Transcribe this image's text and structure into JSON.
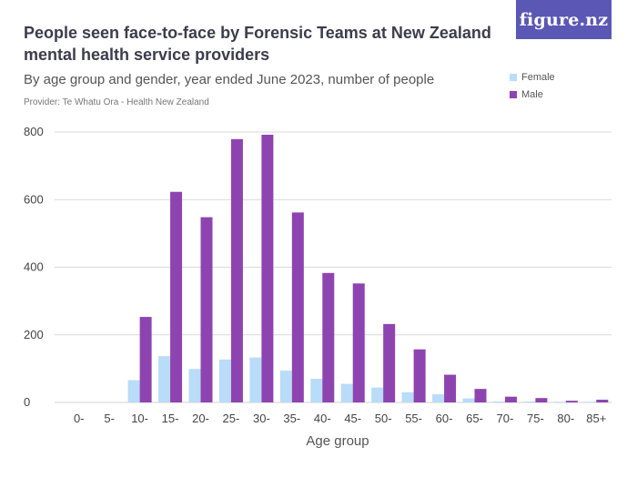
{
  "header": {
    "title": "People seen face-to-face by Forensic Teams at New Zealand mental health service providers",
    "subtitle": "By age group and gender, year ended June 2023, number of people",
    "provider": "Provider: Te Whatu Ora - Health New Zealand",
    "brand": "figure.nz"
  },
  "colors": {
    "female": "#b9dcf8",
    "male": "#8e44b0",
    "grid": "#d9d9d9",
    "brand_bg": "#5b57b5"
  },
  "chart_data": {
    "type": "bar",
    "title": "People seen face-to-face by Forensic Teams at New Zealand mental health service providers",
    "subtitle": "By age group and gender, year ended June 2023, number of people",
    "xlabel": "Age group",
    "ylabel": "",
    "ylim": [
      0,
      800
    ],
    "yticks": [
      0,
      200,
      400,
      600,
      800
    ],
    "grid": true,
    "legend_position": "top-right",
    "categories": [
      "0-",
      "5-",
      "10-",
      "15-",
      "20-",
      "25-",
      "30-",
      "35-",
      "40-",
      "45-",
      "50-",
      "55-",
      "60-",
      "65-",
      "70-",
      "75-",
      "80-",
      "85+"
    ],
    "series": [
      {
        "name": "Female",
        "values": [
          0,
          0,
          66,
          137,
          99,
          127,
          133,
          94,
          70,
          55,
          44,
          30,
          24,
          12,
          3,
          3,
          2,
          2
        ]
      },
      {
        "name": "Male",
        "values": [
          0,
          0,
          253,
          623,
          548,
          779,
          792,
          562,
          383,
          352,
          232,
          157,
          82,
          40,
          17,
          13,
          5,
          8
        ]
      }
    ]
  }
}
